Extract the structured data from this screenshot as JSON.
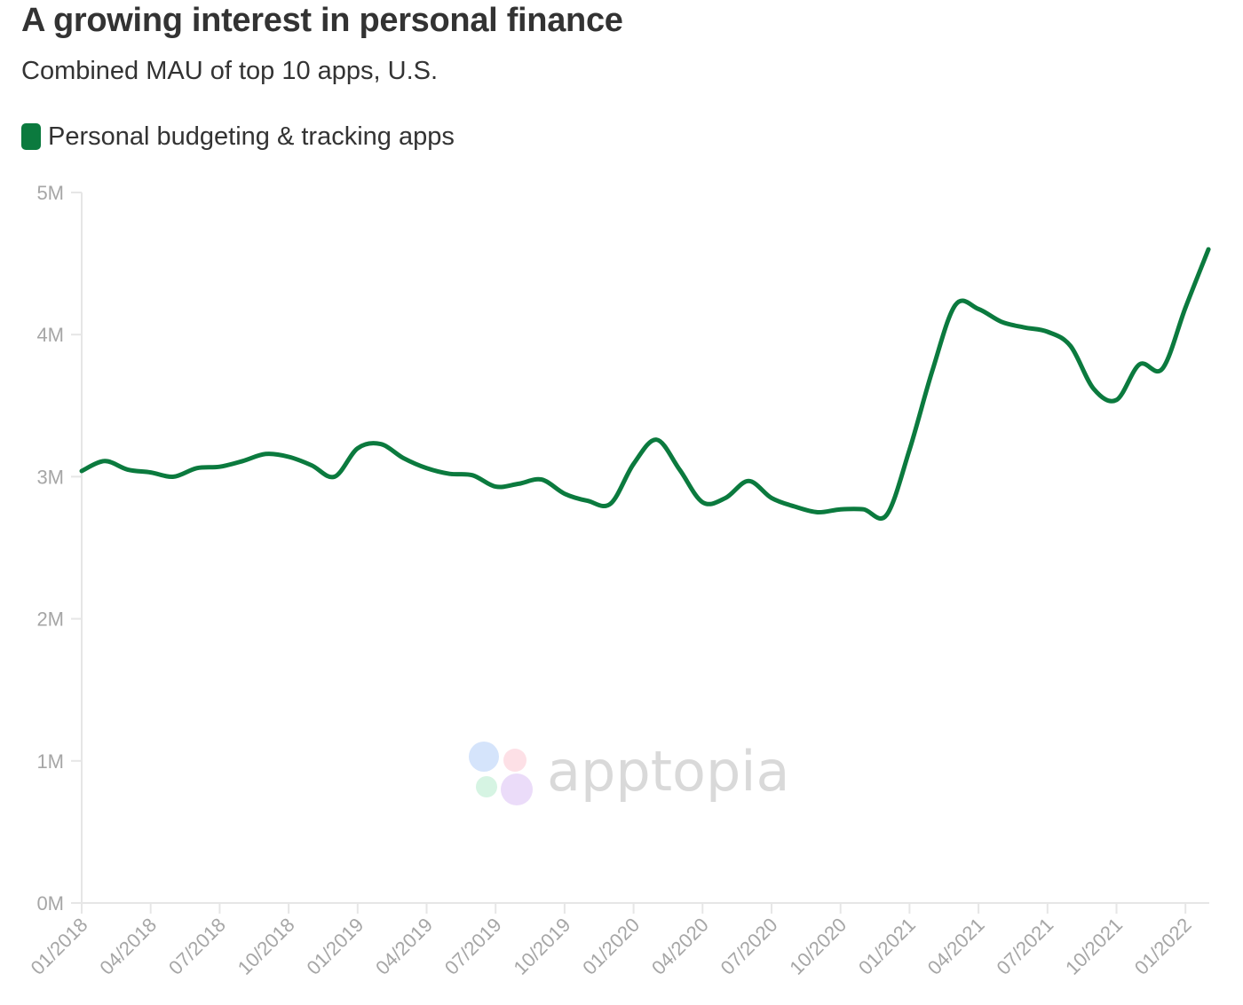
{
  "chart_data": {
    "type": "line",
    "title": "A growing interest in personal finance",
    "subtitle": "Combined MAU of top 10 apps, U.S.",
    "xlabel": "",
    "ylabel": "",
    "ylim": [
      0,
      5000000
    ],
    "yticks": [
      0,
      1000000,
      2000000,
      3000000,
      4000000,
      5000000
    ],
    "ytick_labels": [
      "0M",
      "1M",
      "2M",
      "3M",
      "4M",
      "5M"
    ],
    "xticks": [
      "01/2018",
      "04/2018",
      "07/2018",
      "10/2018",
      "01/2019",
      "04/2019",
      "07/2019",
      "10/2019",
      "01/2020",
      "04/2020",
      "07/2020",
      "10/2020",
      "01/2021",
      "04/2021",
      "07/2021",
      "10/2021",
      "01/2022"
    ],
    "grid": false,
    "legend_position": "top-left",
    "series_color": "#0b7a3e",
    "series": [
      {
        "name": "Personal budgeting & tracking apps",
        "x": [
          "01/2018",
          "02/2018",
          "03/2018",
          "04/2018",
          "05/2018",
          "06/2018",
          "07/2018",
          "08/2018",
          "09/2018",
          "10/2018",
          "11/2018",
          "12/2018",
          "01/2019",
          "02/2019",
          "03/2019",
          "04/2019",
          "05/2019",
          "06/2019",
          "07/2019",
          "08/2019",
          "09/2019",
          "10/2019",
          "11/2019",
          "12/2019",
          "01/2020",
          "02/2020",
          "03/2020",
          "04/2020",
          "05/2020",
          "06/2020",
          "07/2020",
          "08/2020",
          "09/2020",
          "10/2020",
          "11/2020",
          "12/2020",
          "01/2021",
          "02/2021",
          "03/2021",
          "04/2021",
          "05/2021",
          "06/2021",
          "07/2021",
          "08/2021",
          "09/2021",
          "10/2021",
          "11/2021",
          "12/2021",
          "01/2022",
          "02/2022"
        ],
        "values": [
          3040000,
          3110000,
          3050000,
          3030000,
          3000000,
          3060000,
          3070000,
          3110000,
          3160000,
          3140000,
          3080000,
          3000000,
          3200000,
          3230000,
          3130000,
          3060000,
          3020000,
          3010000,
          2930000,
          2950000,
          2980000,
          2880000,
          2830000,
          2810000,
          3090000,
          3260000,
          3050000,
          2820000,
          2850000,
          2970000,
          2850000,
          2790000,
          2750000,
          2770000,
          2770000,
          2730000,
          3190000,
          3750000,
          4210000,
          4180000,
          4090000,
          4050000,
          4020000,
          3920000,
          3620000,
          3540000,
          3790000,
          3760000,
          4190000,
          4600000
        ]
      }
    ]
  },
  "watermark": {
    "text": "apptopia",
    "petal_colors": [
      "#d5e4fb",
      "#fde0e6",
      "#d6f4e3",
      "#ebdcf9"
    ]
  }
}
